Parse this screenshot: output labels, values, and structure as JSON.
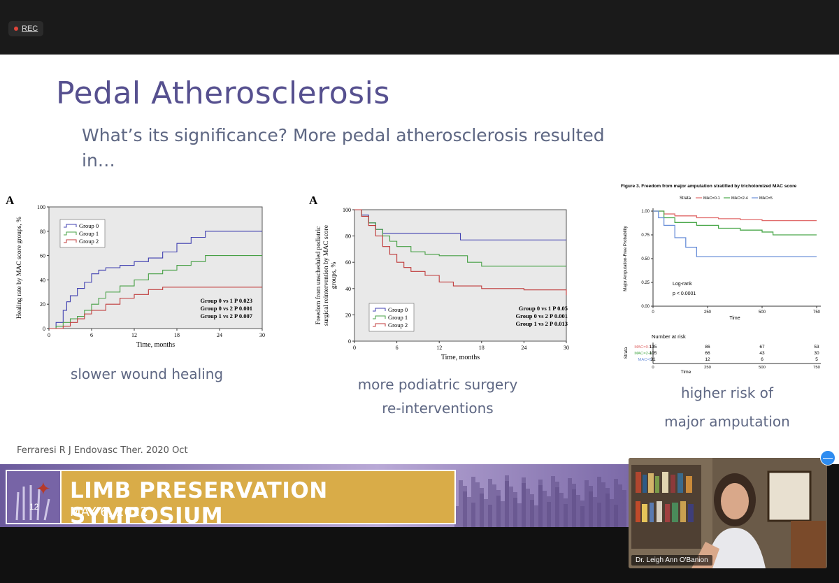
{
  "meeting": {
    "rec_label": "REC",
    "participant_name": "Dr. Leigh Ann O'Banion",
    "minimize_label": "—"
  },
  "slide": {
    "title": "Pedal Atherosclerosis",
    "subtitle": "What’s its significance? More pedal atherosclerosis resulted in…",
    "captions": {
      "healing": "slower wound healing",
      "podiatric_1": "more podiatric surgery",
      "podiatric_2": "re-interventions",
      "amputation_1": "higher risk of",
      "amputation_2": "major amputation"
    },
    "citation": "Ferraresi R J Endovasc Ther. 2020 Oct"
  },
  "banner": {
    "line1": "LIMB PRESERVATION SYMPOSIUM",
    "line2": "MAY 6, 2022",
    "logo_number": "12"
  },
  "chart_data": [
    {
      "type": "line",
      "panel_label": "A",
      "xlabel": "Time, months",
      "ylabel": "Healing rate by MAC score groups, %",
      "xlim": [
        0,
        30
      ],
      "ylim": [
        0,
        100
      ],
      "xticks": [
        0,
        6,
        12,
        18,
        24,
        30
      ],
      "yticks": [
        0,
        20,
        40,
        60,
        80,
        100
      ],
      "legend": [
        "Group 0",
        "Group 1",
        "Group 2"
      ],
      "series": [
        {
          "name": "Group 0",
          "color": "#3f3fb0",
          "x": [
            0,
            1,
            2,
            2.5,
            3,
            4,
            5,
            6,
            7,
            8,
            10,
            12,
            14,
            16,
            18,
            20,
            22,
            24,
            30
          ],
          "y": [
            0,
            5,
            15,
            22,
            27,
            33,
            38,
            45,
            48,
            50,
            52,
            55,
            58,
            63,
            70,
            75,
            80,
            80,
            80
          ]
        },
        {
          "name": "Group 1",
          "color": "#47a045",
          "x": [
            0,
            1,
            2,
            3,
            4,
            5,
            6,
            7,
            8,
            10,
            12,
            14,
            16,
            18,
            20,
            22,
            30
          ],
          "y": [
            0,
            2,
            5,
            8,
            10,
            15,
            20,
            25,
            30,
            35,
            40,
            45,
            48,
            52,
            55,
            60,
            60
          ]
        },
        {
          "name": "Group 2",
          "color": "#c03a3a",
          "x": [
            0,
            2,
            3,
            4,
            5,
            6,
            8,
            10,
            12,
            14,
            16,
            30
          ],
          "y": [
            0,
            2,
            5,
            8,
            12,
            15,
            20,
            25,
            28,
            32,
            34,
            34
          ]
        }
      ],
      "annotations": [
        "Group 0 vs 1 P 0.023",
        "Group 0 vs 2 P 0.001",
        "Group 1 vs 2 P 0.007"
      ]
    },
    {
      "type": "line",
      "panel_label": "A",
      "xlabel": "Time, months",
      "ylabel": "Freedom from unscheduled podiatric surgical reintervention by MAC score groups, %",
      "xlim": [
        0,
        30
      ],
      "ylim": [
        0,
        100
      ],
      "xticks": [
        0,
        6,
        12,
        18,
        24,
        30
      ],
      "yticks": [
        0,
        20,
        40,
        60,
        80,
        100
      ],
      "legend": [
        "Group 0",
        "Group 1",
        "Group 2"
      ],
      "series": [
        {
          "name": "Group 0",
          "color": "#3f3fb0",
          "x": [
            0,
            1,
            2,
            3,
            4,
            14,
            15,
            30
          ],
          "y": [
            100,
            96,
            90,
            85,
            82,
            82,
            77,
            77
          ]
        },
        {
          "name": "Group 1",
          "color": "#47a045",
          "x": [
            0,
            1,
            2,
            3,
            4,
            5,
            6,
            8,
            10,
            12,
            16,
            18,
            30
          ],
          "y": [
            100,
            95,
            90,
            85,
            80,
            76,
            72,
            68,
            66,
            65,
            60,
            57,
            57
          ]
        },
        {
          "name": "Group 2",
          "color": "#c03a3a",
          "x": [
            0,
            1,
            2,
            3,
            4,
            5,
            6,
            7,
            8,
            10,
            12,
            14,
            16,
            18,
            24,
            28,
            30
          ],
          "y": [
            100,
            95,
            88,
            80,
            72,
            66,
            60,
            56,
            53,
            50,
            45,
            42,
            42,
            40,
            39,
            39,
            35
          ]
        }
      ],
      "annotations": [
        "Group 0 vs 1 P 0.05",
        "Group 0 vs 2 P 0.001",
        "Group 1 vs 2 P 0.013"
      ]
    },
    {
      "type": "line",
      "title": "Figure 3. Freedom from major amputation stratified by trichotomized MAC score",
      "xlabel": "Time",
      "ylabel": "Major Amputation-Free Probability",
      "xlim": [
        0,
        750
      ],
      "ylim": [
        0,
        1
      ],
      "xticks": [
        0,
        250,
        500,
        750
      ],
      "yticks": [
        "0.00",
        "0.25",
        "0.50",
        "0.75",
        "1.00"
      ],
      "legend_title": "Strata",
      "legend": [
        "MAC=0-1",
        "MAC=2-4",
        "MAC=5"
      ],
      "series": [
        {
          "name": "MAC=0-1",
          "color": "#e06a6a",
          "x": [
            0,
            50,
            100,
            200,
            300,
            400,
            500,
            750
          ],
          "y": [
            1.0,
            0.97,
            0.95,
            0.93,
            0.92,
            0.91,
            0.9,
            0.9
          ]
        },
        {
          "name": "MAC=2-4",
          "color": "#4aa84a",
          "x": [
            0,
            50,
            100,
            200,
            300,
            400,
            500,
            550,
            750
          ],
          "y": [
            1.0,
            0.93,
            0.88,
            0.85,
            0.82,
            0.8,
            0.78,
            0.75,
            0.75
          ]
        },
        {
          "name": "MAC=5",
          "color": "#6a8fd8",
          "x": [
            0,
            25,
            50,
            100,
            150,
            200,
            300,
            750
          ],
          "y": [
            1.0,
            0.93,
            0.85,
            0.72,
            0.62,
            0.52,
            0.52,
            0.52
          ]
        }
      ],
      "annotations": [
        "Log-rank",
        "p < 0.0001"
      ],
      "risk_table": {
        "title": "Number at risk",
        "strata_label": "Strata",
        "xlabel": "Time",
        "rows": [
          {
            "name": "MAC=0-1",
            "values": [
              "135",
              "86",
              "67",
              "53"
            ]
          },
          {
            "name": "MAC=2-4",
            "values": [
              "105",
              "66",
              "43",
              "30"
            ]
          },
          {
            "name": "MAC=5",
            "values": [
              "31",
              "12",
              "6",
              "5"
            ]
          }
        ]
      }
    }
  ]
}
